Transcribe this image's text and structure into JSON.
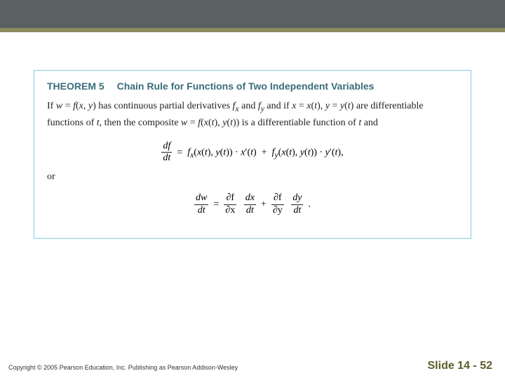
{
  "colors": {
    "topbar_dark": "#5a6163",
    "topbar_olive": "#8a8c5f",
    "box_border": "#7fcfe6",
    "title_color": "#3a6d7a",
    "body_color": "#222222",
    "slidenum_color": "#5b5c2a",
    "copyright_color": "#333333",
    "background": "#ffffff"
  },
  "theorem": {
    "label": "THEOREM 5",
    "title": "Chain Rule for Functions of Two Independent Variables",
    "body_before_or": "If w = f(x, y) has continuous partial derivatives f_x and f_y and if x = x(t), y = y(t) are differentiable functions of t, then the composite w = f(x(t), y(t)) is a differentiable function of t and",
    "eq1_lhs_num": "df",
    "eq1_lhs_den": "dt",
    "eq1_rhs": "f_x(x(t), y(t)) · x′(t)  +  f_y(x(t), y(t)) · y′(t),",
    "or_text": "or",
    "eq2_lhs_num": "dw",
    "eq2_lhs_den": "dt",
    "eq2_t1_num": "∂f",
    "eq2_t1_den": "∂x",
    "eq2_t2_num": "dx",
    "eq2_t2_den": "dt",
    "eq2_t3_num": "∂f",
    "eq2_t3_den": "∂y",
    "eq2_t4_num": "dy",
    "eq2_t4_den": "dt",
    "title_fontsize": 14,
    "body_fontsize": 14
  },
  "footer": {
    "copyright": "Copyright © 2005 Pearson Education, Inc.  Publishing as Pearson Addison-Wesley",
    "slide_label": "Slide 14 - 52"
  }
}
